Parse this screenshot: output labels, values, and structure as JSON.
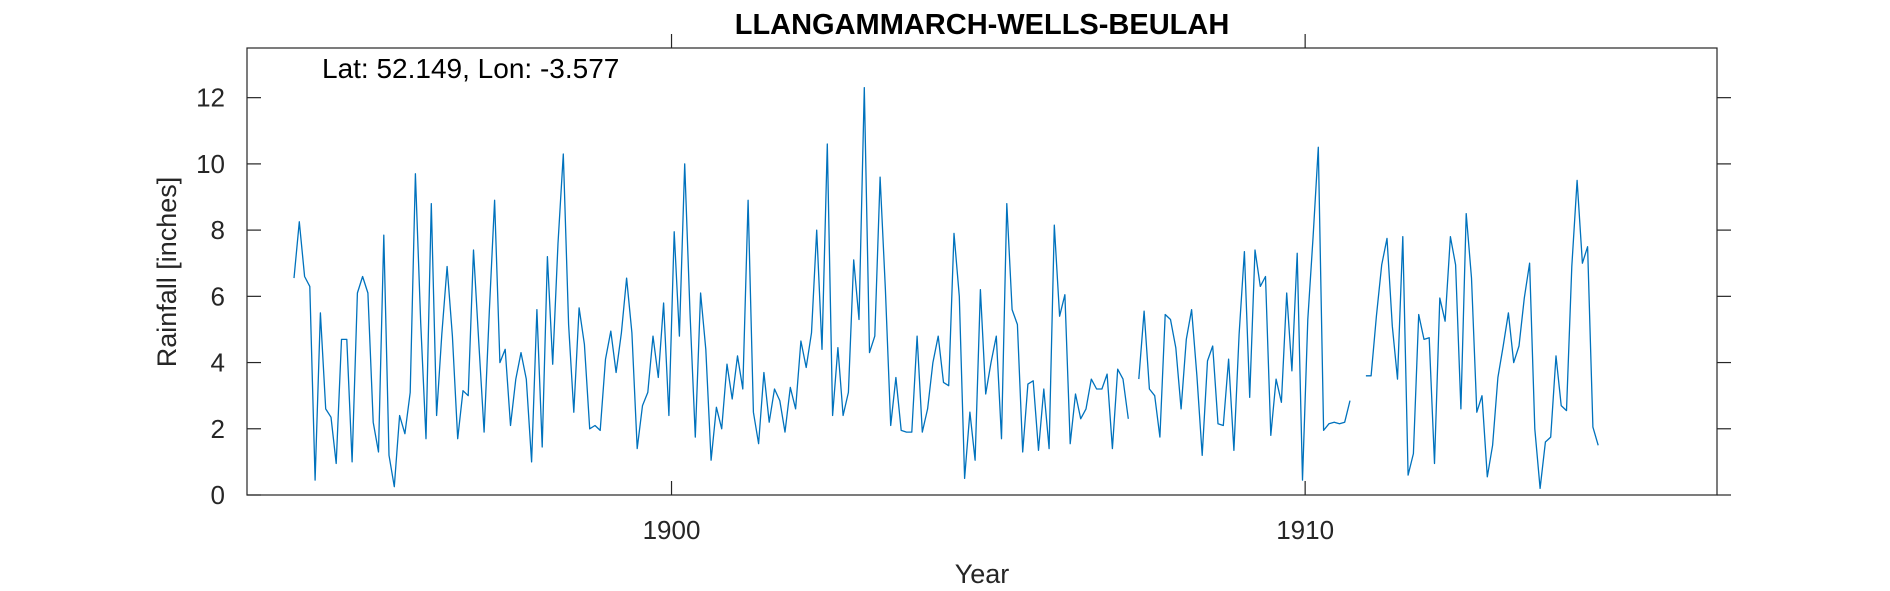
{
  "chart_data": {
    "type": "line",
    "title": "LLANGAMMARCH-WELLS-BEULAH",
    "annotation": "Lat: 52.149, Lon: -3.577",
    "xlabel": "Year",
    "ylabel": "Rainfall [inches]",
    "xlim": [
      1893.3,
      1916.5
    ],
    "ylim": [
      0,
      13.5
    ],
    "xticks": [
      1900,
      1910
    ],
    "xtick_labels": [
      "1900",
      "1910"
    ],
    "yticks": [
      0,
      2,
      4,
      6,
      8,
      10,
      12
    ],
    "ytick_labels": [
      "0",
      "2",
      "4",
      "6",
      "8",
      "10",
      "12"
    ],
    "grid": false,
    "line_color": "#0072BD",
    "series": [
      {
        "start_year": 1894,
        "start_month": 1,
        "values": [
          6.55,
          8.25,
          6.6,
          6.3,
          0.45,
          5.5,
          2.6,
          2.35,
          0.95,
          4.7,
          4.7,
          1.0,
          6.1,
          6.6,
          6.1,
          2.2,
          1.3,
          7.85,
          1.2,
          0.25,
          2.4,
          1.85,
          3.1,
          9.7,
          5.2,
          1.7,
          8.8,
          2.4,
          4.85,
          6.9,
          4.8,
          1.7,
          3.15,
          3.0,
          7.4,
          4.6,
          1.9,
          5.6,
          8.9,
          4.0,
          4.4,
          2.1,
          3.5,
          4.3,
          3.5,
          1.0,
          5.6,
          1.45,
          7.2,
          3.95,
          7.6,
          10.3,
          5.15,
          2.5,
          5.65,
          4.55,
          2.0,
          2.1,
          1.95,
          4.1,
          4.95,
          3.7,
          4.9,
          6.55,
          4.9,
          1.4,
          2.7,
          3.1,
          4.8,
          3.55,
          5.8,
          2.4,
          7.95,
          4.8,
          10.0,
          5.5,
          1.75,
          6.1,
          4.4,
          1.05,
          2.65,
          2.0,
          3.95,
          2.9,
          4.2,
          3.2,
          8.9,
          2.5,
          1.55,
          3.7,
          2.2,
          3.2,
          2.85,
          1.9,
          3.25,
          2.6,
          4.65,
          3.85,
          4.9,
          8.0,
          4.4,
          10.6,
          2.4,
          4.45,
          2.4,
          3.1,
          7.1,
          5.3,
          12.3,
          4.3,
          4.8,
          9.6,
          6.2,
          2.1,
          3.55,
          1.95,
          1.9,
          1.9,
          4.8,
          1.9,
          2.6,
          4.0,
          4.8,
          3.4,
          3.3,
          7.9,
          6.0,
          0.5,
          2.5,
          1.05,
          6.2,
          3.05,
          4.0,
          4.8,
          1.7,
          8.8,
          5.6,
          5.15,
          1.3,
          3.35,
          3.45,
          1.35,
          3.2,
          1.4,
          8.15,
          5.4,
          6.05,
          1.55,
          3.05,
          2.3,
          2.6,
          3.5,
          3.2,
          3.2,
          3.65,
          1.4,
          3.8,
          3.5,
          2.3,
          null,
          3.5,
          5.55,
          3.2,
          3.0,
          1.75,
          5.45,
          5.3,
          4.45,
          2.6,
          4.7,
          5.6,
          3.6,
          1.2,
          4.05,
          4.5,
          2.15,
          2.1,
          4.1,
          1.35,
          4.85,
          7.35,
          2.95,
          7.4,
          6.3,
          6.6,
          1.8,
          3.5,
          2.8,
          6.1,
          3.75,
          7.3,
          0.45,
          5.3,
          7.8,
          10.5,
          1.95,
          2.15,
          2.2,
          2.15,
          2.2,
          2.85,
          null,
          null,
          3.6,
          3.6,
          5.4,
          6.95,
          7.75,
          5.1,
          3.5,
          7.8,
          0.6,
          1.25,
          5.45,
          4.7,
          4.75,
          0.95,
          5.95,
          5.25,
          7.8,
          6.95,
          2.6,
          8.5,
          6.55,
          2.5,
          3.0,
          0.55,
          1.5,
          3.55,
          4.5,
          5.5,
          4.0,
          4.5,
          5.95,
          7.0,
          2.0,
          0.2,
          1.6,
          1.75,
          4.2,
          2.7,
          2.55,
          6.9,
          9.5,
          7.0,
          7.5,
          2.05,
          1.5
        ]
      }
    ]
  }
}
